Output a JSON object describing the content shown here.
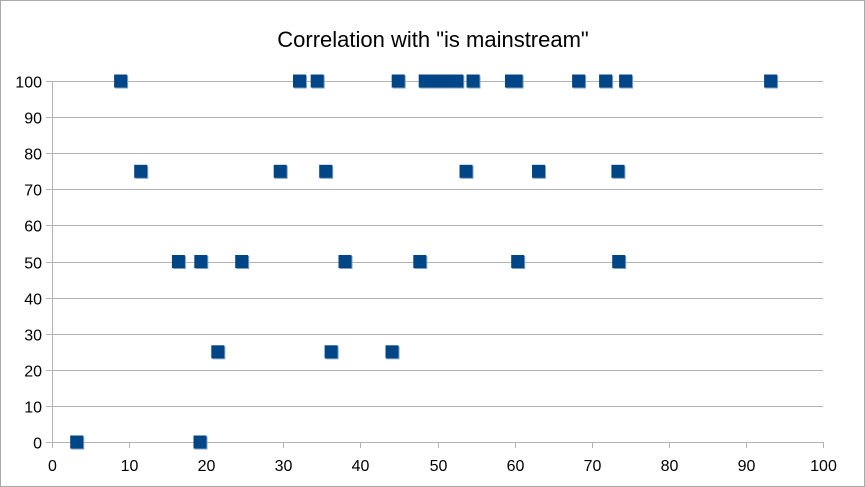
{
  "chart_data": {
    "type": "scatter",
    "title": "Correlation with \"is mainstream\"",
    "xlabel": "",
    "ylabel": "",
    "xlim": [
      0,
      100
    ],
    "ylim": [
      0,
      100
    ],
    "x_ticks": [
      0,
      10,
      20,
      30,
      40,
      50,
      60,
      70,
      80,
      90,
      100
    ],
    "y_ticks": [
      0,
      10,
      20,
      30,
      40,
      50,
      60,
      70,
      80,
      90,
      100
    ],
    "grid": true,
    "legend": "none",
    "marker": "square",
    "marker_color": "#004586",
    "series": [
      {
        "points": [
          [
            3.2,
            0
          ],
          [
            19.2,
            0
          ],
          [
            21.5,
            25
          ],
          [
            36.2,
            25
          ],
          [
            44.1,
            25
          ],
          [
            16.4,
            50
          ],
          [
            19.3,
            50
          ],
          [
            24.6,
            50
          ],
          [
            38.0,
            50
          ],
          [
            47.7,
            50
          ],
          [
            60.4,
            50
          ],
          [
            73.5,
            50
          ],
          [
            11.5,
            75
          ],
          [
            29.6,
            75
          ],
          [
            35.5,
            75
          ],
          [
            53.7,
            75
          ],
          [
            63.1,
            75
          ],
          [
            73.4,
            75
          ],
          [
            8.9,
            100
          ],
          [
            32.1,
            100
          ],
          [
            34.4,
            100
          ],
          [
            44.9,
            100
          ],
          [
            48.4,
            100
          ],
          [
            49.6,
            100
          ],
          [
            51.0,
            100
          ],
          [
            52.5,
            100
          ],
          [
            54.6,
            100
          ],
          [
            59.6,
            100
          ],
          [
            60.2,
            100
          ],
          [
            68.3,
            100
          ],
          [
            71.8,
            100
          ],
          [
            74.4,
            100
          ],
          [
            93.2,
            100
          ]
        ]
      }
    ]
  }
}
